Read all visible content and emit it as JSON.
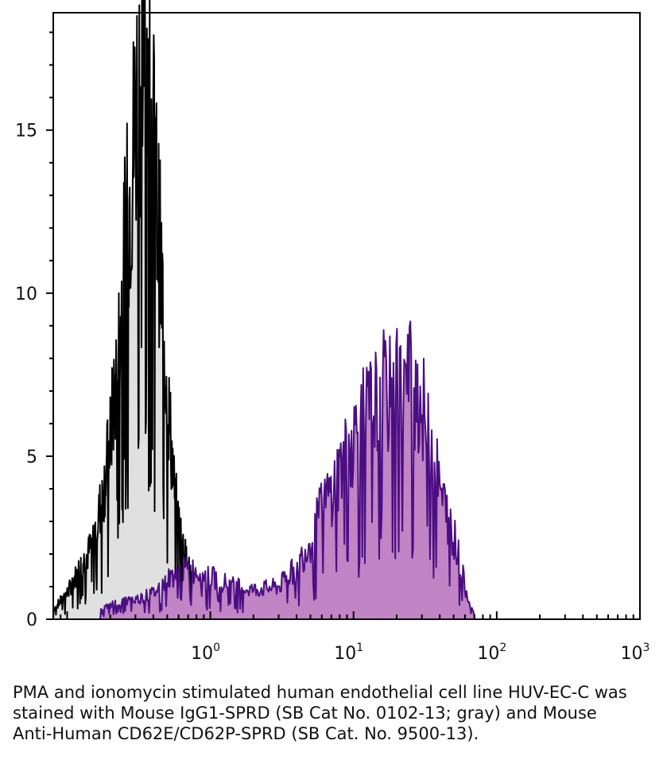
{
  "caption": "PMA and ionomycin stimulated human endothelial cell line HUV-EC-C was stained with Mouse IgG1-SPRD (SB Cat  No. 0102-13; gray) and Mouse Anti-Human CD62E/CD62P-SPRD (SB Cat. No. 9500-13).",
  "chart_data": {
    "type": "area",
    "x_scale": "log",
    "xlim": [
      0.08,
      1000
    ],
    "ylim": [
      0,
      18.6
    ],
    "y_ticks": [
      0,
      5,
      10,
      15
    ],
    "y_tick_labels": [
      "0",
      "5",
      "10",
      "15"
    ],
    "x_ticks": [
      1,
      10,
      100,
      1000
    ],
    "x_tick_labels": [
      {
        "base": "10",
        "exp": "0"
      },
      {
        "base": "10",
        "exp": "1"
      },
      {
        "base": "10",
        "exp": "2"
      },
      {
        "base": "10",
        "exp": "3"
      }
    ],
    "grid": false,
    "series": [
      {
        "fill": "#e0e0e0",
        "stroke": "#000000",
        "x": [
          0.08,
          0.1,
          0.12,
          0.14,
          0.16,
          0.18,
          0.2,
          0.22,
          0.24,
          0.26,
          0.28,
          0.3,
          0.32,
          0.34,
          0.36,
          0.38,
          0.4,
          0.42,
          0.44,
          0.46,
          0.48,
          0.5,
          0.53,
          0.56,
          0.6,
          0.65,
          0.7,
          0.8,
          0.9,
          1.0,
          1.2,
          1.4,
          1.7
        ],
        "y": [
          0.3,
          0.8,
          1.5,
          2.0,
          2.8,
          4.0,
          5.5,
          7.5,
          9.5,
          12.0,
          13.5,
          15.5,
          16.8,
          17.2,
          17.0,
          16.0,
          14.5,
          13.0,
          11.5,
          10.0,
          8.5,
          7.0,
          5.5,
          4.0,
          3.0,
          2.2,
          1.6,
          1.0,
          0.6,
          0.4,
          0.2,
          0.1,
          0.0
        ]
      },
      {
        "fill": "#c184c4",
        "stroke": "#4b0e82",
        "x": [
          0.17,
          0.22,
          0.3,
          0.4,
          0.5,
          0.6,
          0.8,
          1.0,
          1.5,
          2.0,
          3.0,
          4.0,
          5.0,
          6.0,
          7.0,
          8.0,
          9.0,
          10,
          12,
          14,
          16,
          18,
          20,
          22,
          25,
          28,
          30,
          33,
          36,
          40,
          45,
          50,
          55,
          60,
          65,
          70
        ],
        "y": [
          0.3,
          0.5,
          0.6,
          0.8,
          1.2,
          1.5,
          1.5,
          1.3,
          1.0,
          0.9,
          1.0,
          1.6,
          2.4,
          3.4,
          3.9,
          4.6,
          5.0,
          5.6,
          6.1,
          6.5,
          7.0,
          6.8,
          7.3,
          7.0,
          7.4,
          7.0,
          6.5,
          5.8,
          5.0,
          4.0,
          3.2,
          2.6,
          1.8,
          1.0,
          0.5,
          0.2
        ]
      }
    ]
  }
}
